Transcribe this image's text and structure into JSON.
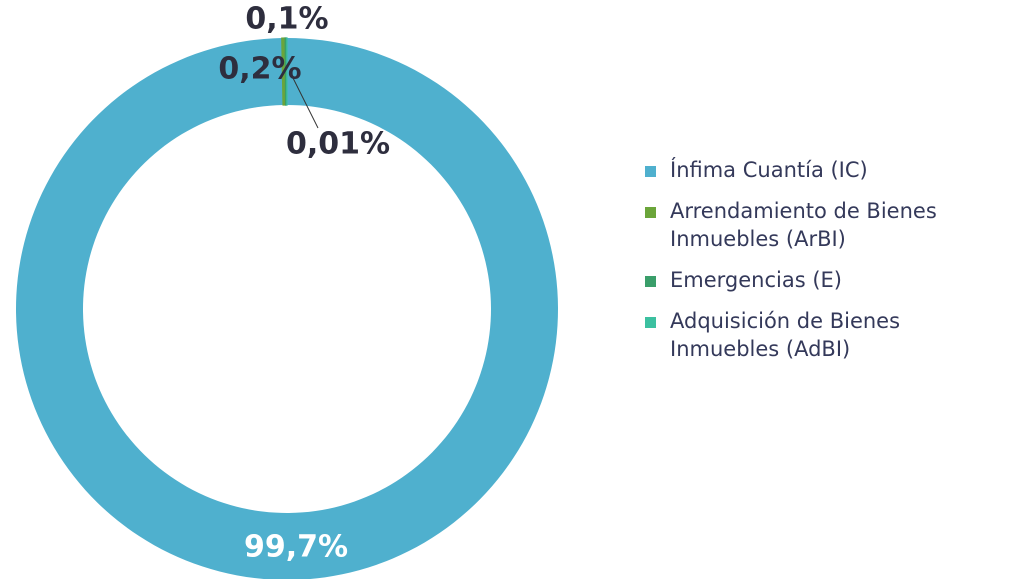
{
  "chart_data": {
    "type": "donut",
    "categories": [
      "Ínfima Cuantía (IC)",
      "Arrendamiento de Bienes Inmuebles (ArBI)",
      "Emergencias (E)",
      "Adquisición de Bienes Inmuebles (AdBI)"
    ],
    "values": [
      99.7,
      0.2,
      0.1,
      0.01
    ],
    "value_labels": [
      "99,7%",
      "0,2%",
      "0,1%",
      "0,01%"
    ],
    "colors": [
      "#4fb0ce",
      "#6ba53a",
      "#3a9e6a",
      "#3cc0a0"
    ],
    "legend": "right"
  }
}
